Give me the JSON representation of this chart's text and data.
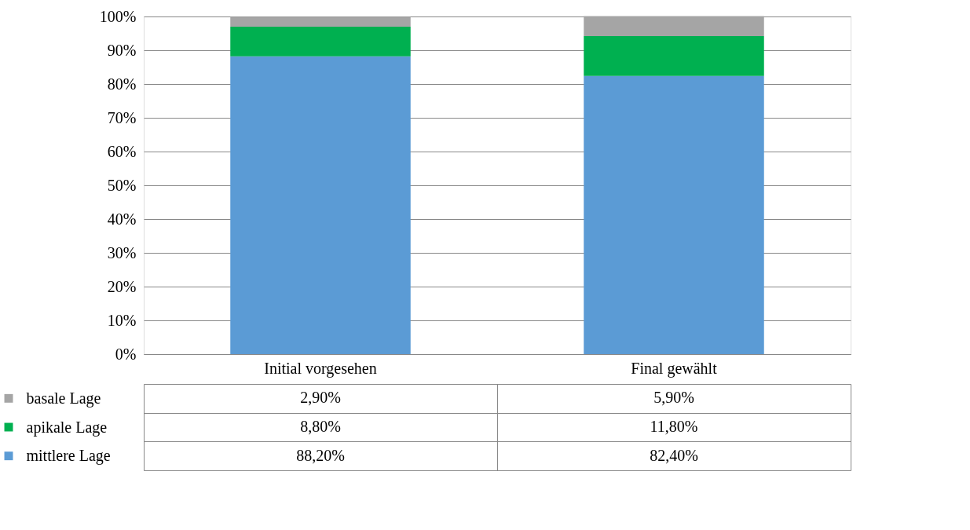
{
  "chart_data": {
    "type": "bar",
    "stacked": true,
    "categories": [
      "Initial vorgesehen",
      "Final gewählt"
    ],
    "series": [
      {
        "name": "mittlere Lage",
        "color": "#5b9bd5",
        "values": [
          88.2,
          82.4
        ],
        "value_labels": [
          "88,20%",
          "82,40%"
        ]
      },
      {
        "name": "apikale Lage",
        "color": "#00b050",
        "values": [
          8.8,
          11.8
        ],
        "value_labels": [
          "8,80%",
          "11,80%"
        ]
      },
      {
        "name": "basale Lage",
        "color": "#a5a5a5",
        "values": [
          2.9,
          5.9
        ],
        "value_labels": [
          "2,90%",
          "5,90%"
        ]
      }
    ],
    "ylim": [
      0,
      100
    ],
    "yticks": [
      {
        "value": 0,
        "label": "0%"
      },
      {
        "value": 10,
        "label": "10%"
      },
      {
        "value": 20,
        "label": "20%"
      },
      {
        "value": 30,
        "label": "30%"
      },
      {
        "value": 40,
        "label": "40%"
      },
      {
        "value": 50,
        "label": "50%"
      },
      {
        "value": 60,
        "label": "60%"
      },
      {
        "value": 70,
        "label": "70%"
      },
      {
        "value": 80,
        "label": "80%"
      },
      {
        "value": 90,
        "label": "90%"
      },
      {
        "value": 100,
        "label": "100%"
      }
    ],
    "grid": "y",
    "legend": "bottom left"
  }
}
